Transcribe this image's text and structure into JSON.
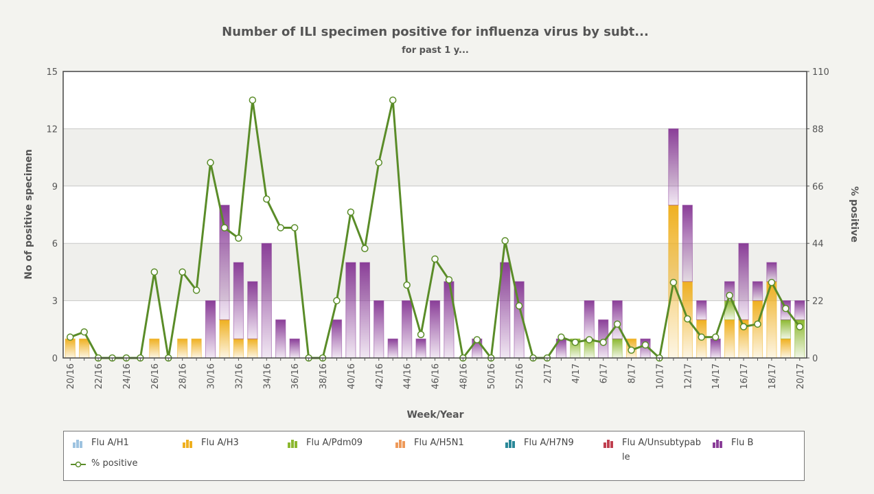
{
  "chart_data": {
    "type": "bar",
    "title": "Number of ILI specimen positive for influenza virus by subt...",
    "subtitle": "for past 1 y...",
    "x_label": "Week/Year",
    "y_label": "No of positive specimen",
    "y2_label": "% positive",
    "stacked": true,
    "grid": true,
    "categories": [
      "20/16",
      null,
      "22/16",
      null,
      "24/16",
      null,
      "26/16",
      null,
      "28/16",
      null,
      "30/16",
      null,
      "32/16",
      null,
      "34/16",
      null,
      "36/16",
      null,
      "38/16",
      null,
      "40/16",
      null,
      "42/16",
      null,
      "44/16",
      null,
      "46/16",
      null,
      "48/16",
      null,
      "50/16",
      null,
      "52/16",
      null,
      "2/17",
      null,
      "4/17",
      null,
      "6/17",
      null,
      "8/17",
      null,
      "10/17",
      null,
      "12/17",
      null,
      "14/17",
      null,
      "16/17",
      null,
      "18/17",
      null,
      "20/17"
    ],
    "ylim": [
      0,
      15
    ],
    "yticks": [
      0,
      3,
      6,
      9,
      12,
      15
    ],
    "y2lim": [
      0,
      110
    ],
    "y2ticks": [
      0,
      22,
      44,
      66,
      88,
      110
    ],
    "series": [
      {
        "name": "Flu A/H1",
        "color": "#9ec3e0",
        "values": [
          0,
          0,
          0,
          0,
          0,
          0,
          0,
          0,
          0,
          0,
          0,
          0,
          0,
          0,
          0,
          0,
          0,
          0,
          0,
          0,
          0,
          0,
          0,
          0,
          0,
          0,
          0,
          0,
          0,
          0,
          0,
          0,
          0,
          0,
          0,
          0,
          0,
          0,
          0,
          0,
          0,
          0,
          0,
          0,
          0,
          0,
          0,
          0,
          0,
          0,
          0,
          0,
          0
        ]
      },
      {
        "name": "Flu A/H3",
        "color": "#efb020",
        "values": [
          1,
          1,
          0,
          0,
          0,
          0,
          1,
          0,
          1,
          1,
          0,
          2,
          1,
          1,
          0,
          0,
          0,
          0,
          0,
          0,
          0,
          0,
          0,
          0,
          0,
          0,
          0,
          0,
          0,
          0,
          0,
          0,
          0,
          0,
          0,
          0,
          0,
          0,
          0,
          0,
          1,
          0,
          0,
          8,
          4,
          2,
          0,
          2,
          2,
          3,
          4,
          1,
          0
        ]
      },
      {
        "name": "Flu A/Pdm09",
        "color": "#8cb830",
        "values": [
          0,
          0,
          0,
          0,
          0,
          0,
          0,
          0,
          0,
          0,
          0,
          0,
          0,
          0,
          0,
          0,
          0,
          0,
          0,
          0,
          0,
          0,
          0,
          0,
          0,
          0,
          0,
          0,
          0,
          0,
          0,
          0,
          0,
          0,
          0,
          0,
          1,
          1,
          0,
          1,
          0,
          0,
          0,
          0,
          0,
          0,
          0,
          1,
          0,
          0,
          0,
          1,
          2
        ]
      },
      {
        "name": "Flu A/H5N1",
        "color": "#ee9a5a",
        "values": [
          0,
          0,
          0,
          0,
          0,
          0,
          0,
          0,
          0,
          0,
          0,
          0,
          0,
          0,
          0,
          0,
          0,
          0,
          0,
          0,
          0,
          0,
          0,
          0,
          0,
          0,
          0,
          0,
          0,
          0,
          0,
          0,
          0,
          0,
          0,
          0,
          0,
          0,
          0,
          0,
          0,
          0,
          0,
          0,
          0,
          0,
          0,
          0,
          0,
          0,
          0,
          0,
          0
        ]
      },
      {
        "name": "Flu A/H7N9",
        "color": "#2a8898",
        "values": [
          0,
          0,
          0,
          0,
          0,
          0,
          0,
          0,
          0,
          0,
          0,
          0,
          0,
          0,
          0,
          0,
          0,
          0,
          0,
          0,
          0,
          0,
          0,
          0,
          0,
          0,
          0,
          0,
          0,
          0,
          0,
          0,
          0,
          0,
          0,
          0,
          0,
          0,
          0,
          0,
          0,
          0,
          0,
          0,
          0,
          0,
          0,
          0,
          0,
          0,
          0,
          0,
          0
        ]
      },
      {
        "name": "Flu A/Unsubtypable",
        "color": "#c04050",
        "values": [
          0,
          0,
          0,
          0,
          0,
          0,
          0,
          0,
          0,
          0,
          0,
          0,
          0,
          0,
          0,
          0,
          0,
          0,
          0,
          0,
          0,
          0,
          0,
          0,
          0,
          0,
          0,
          0,
          0,
          0,
          0,
          0,
          0,
          0,
          0,
          0,
          0,
          0,
          0,
          0,
          0,
          0,
          0,
          0,
          0,
          0,
          0,
          0,
          0,
          0,
          0,
          0,
          0
        ]
      },
      {
        "name": "Flu B",
        "color": "#8a3e98",
        "values": [
          0,
          0,
          0,
          0,
          0,
          0,
          0,
          0,
          0,
          0,
          3,
          6,
          4,
          3,
          6,
          2,
          1,
          0,
          0,
          2,
          5,
          5,
          3,
          1,
          3,
          1,
          3,
          4,
          0,
          1,
          0,
          5,
          4,
          0,
          0,
          1,
          0,
          2,
          2,
          2,
          0,
          1,
          0,
          4,
          4,
          1,
          1,
          1,
          4,
          1,
          1,
          1,
          1
        ]
      },
      {
        "name": "% positive",
        "color": "#5a8c28",
        "type": "line",
        "axis": "y2",
        "values": [
          8,
          10,
          0,
          0,
          0,
          0,
          33,
          0,
          33,
          26,
          75,
          50,
          46,
          99,
          61,
          50,
          50,
          0,
          0,
          22,
          56,
          42,
          75,
          99,
          28,
          9,
          38,
          30,
          0,
          7,
          0,
          45,
          20,
          0,
          0,
          8,
          6,
          7,
          6,
          13,
          3,
          5,
          0,
          29,
          15,
          8,
          8,
          24,
          12,
          13,
          29,
          19,
          12
        ]
      }
    ]
  }
}
